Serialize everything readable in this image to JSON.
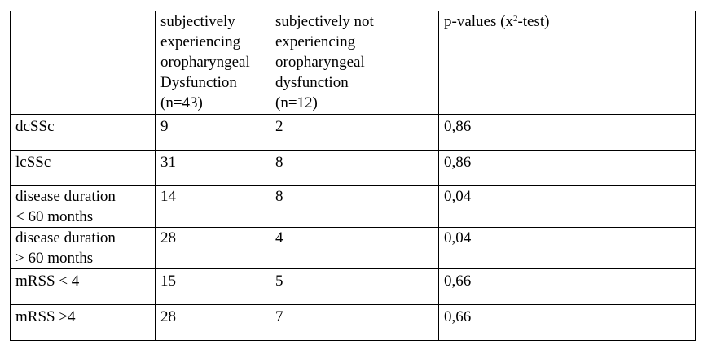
{
  "table": {
    "header": [
      "",
      [
        "subjectively",
        "experiencing",
        "oropharyngeal",
        "Dysfunction",
        "(n=43)"
      ],
      [
        "subjectively not",
        "experiencing",
        "oropharyngeal",
        "dysfunction",
        "(n=12)"
      ],
      {
        "pre": "p-values (x",
        "sup": "2",
        "post": "-test)"
      }
    ],
    "rows": [
      {
        "label": [
          "dcSSc"
        ],
        "a": "9",
        "b": "2",
        "p": "0,86"
      },
      {
        "label": [
          "lcSSc"
        ],
        "a": "31",
        "b": "8",
        "p": "0,86"
      },
      {
        "label": [
          "disease duration",
          "< 60 months"
        ],
        "a": "14",
        "b": "8",
        "p": "0,04"
      },
      {
        "label": [
          "disease duration",
          "> 60 months"
        ],
        "a": "28",
        "b": "4",
        "p": "0,04"
      },
      {
        "label": [
          "mRSS < 4"
        ],
        "a": "15",
        "b": "5",
        "p": "0,66"
      },
      {
        "label": [
          "mRSS >4"
        ],
        "a": "28",
        "b": "7",
        "p": "0,66"
      }
    ]
  }
}
